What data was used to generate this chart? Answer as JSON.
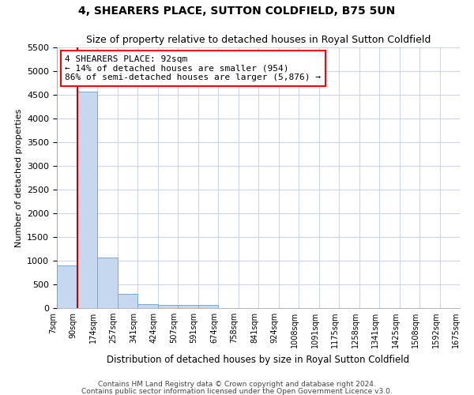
{
  "title": "4, SHEARERS PLACE, SUTTON COLDFIELD, B75 5UN",
  "subtitle": "Size of property relative to detached houses in Royal Sutton Coldfield",
  "xlabel": "Distribution of detached houses by size in Royal Sutton Coldfield",
  "ylabel": "Number of detached properties",
  "footnote1": "Contains HM Land Registry data © Crown copyright and database right 2024.",
  "footnote2": "Contains public sector information licensed under the Open Government Licence v3.0.",
  "bar_values": [
    900,
    4570,
    1070,
    300,
    90,
    65,
    60,
    60,
    0,
    0,
    0,
    0,
    0,
    0,
    0,
    0,
    0,
    0,
    0,
    0
  ],
  "bar_color": "#c5d8ef",
  "bar_edge_color": "#7aaad0",
  "highlight_color": "#cc0000",
  "x_labels": [
    "7sqm",
    "90sqm",
    "174sqm",
    "257sqm",
    "341sqm",
    "424sqm",
    "507sqm",
    "591sqm",
    "674sqm",
    "758sqm",
    "841sqm",
    "924sqm",
    "1008sqm",
    "1091sqm",
    "1175sqm",
    "1258sqm",
    "1341sqm",
    "1425sqm",
    "1508sqm",
    "1592sqm",
    "1675sqm"
  ],
  "ylim": [
    0,
    5500
  ],
  "yticks": [
    0,
    500,
    1000,
    1500,
    2000,
    2500,
    3000,
    3500,
    4000,
    4500,
    5000,
    5500
  ],
  "annotation_text": "4 SHEARERS PLACE: 92sqm\n← 14% of detached houses are smaller (954)\n86% of semi-detached houses are larger (5,876) →",
  "bg_color": "#ffffff",
  "grid_color": "#ccd6e8",
  "red_line_x": 1
}
